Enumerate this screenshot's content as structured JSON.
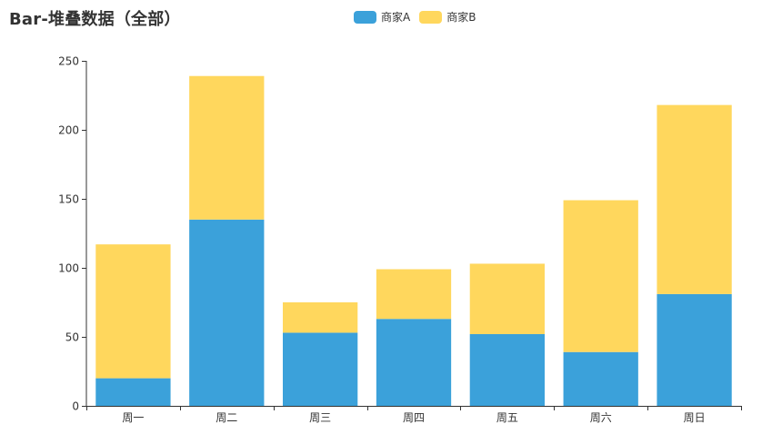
{
  "title": "Bar-堆叠数据（全部）",
  "legend": [
    {
      "label": "商家A",
      "color": "#3ba1da"
    },
    {
      "label": "商家B",
      "color": "#ffd75d"
    }
  ],
  "chart_data": {
    "type": "bar",
    "stacked": true,
    "title": "Bar-堆叠数据（全部）",
    "xlabel": "",
    "ylabel": "",
    "categories": [
      "周一",
      "周二",
      "周三",
      "周四",
      "周五",
      "周六",
      "周日"
    ],
    "series": [
      {
        "name": "商家A",
        "color": "#3ba1da",
        "values": [
          20,
          135,
          53,
          63,
          52,
          39,
          81
        ]
      },
      {
        "name": "商家B",
        "color": "#ffd75d",
        "values": [
          97,
          104,
          22,
          36,
          51,
          110,
          137
        ]
      }
    ],
    "ylim": [
      0,
      250
    ],
    "yticks": [
      0,
      50,
      100,
      150,
      200,
      250
    ],
    "grid": false,
    "legend_position": "top"
  }
}
